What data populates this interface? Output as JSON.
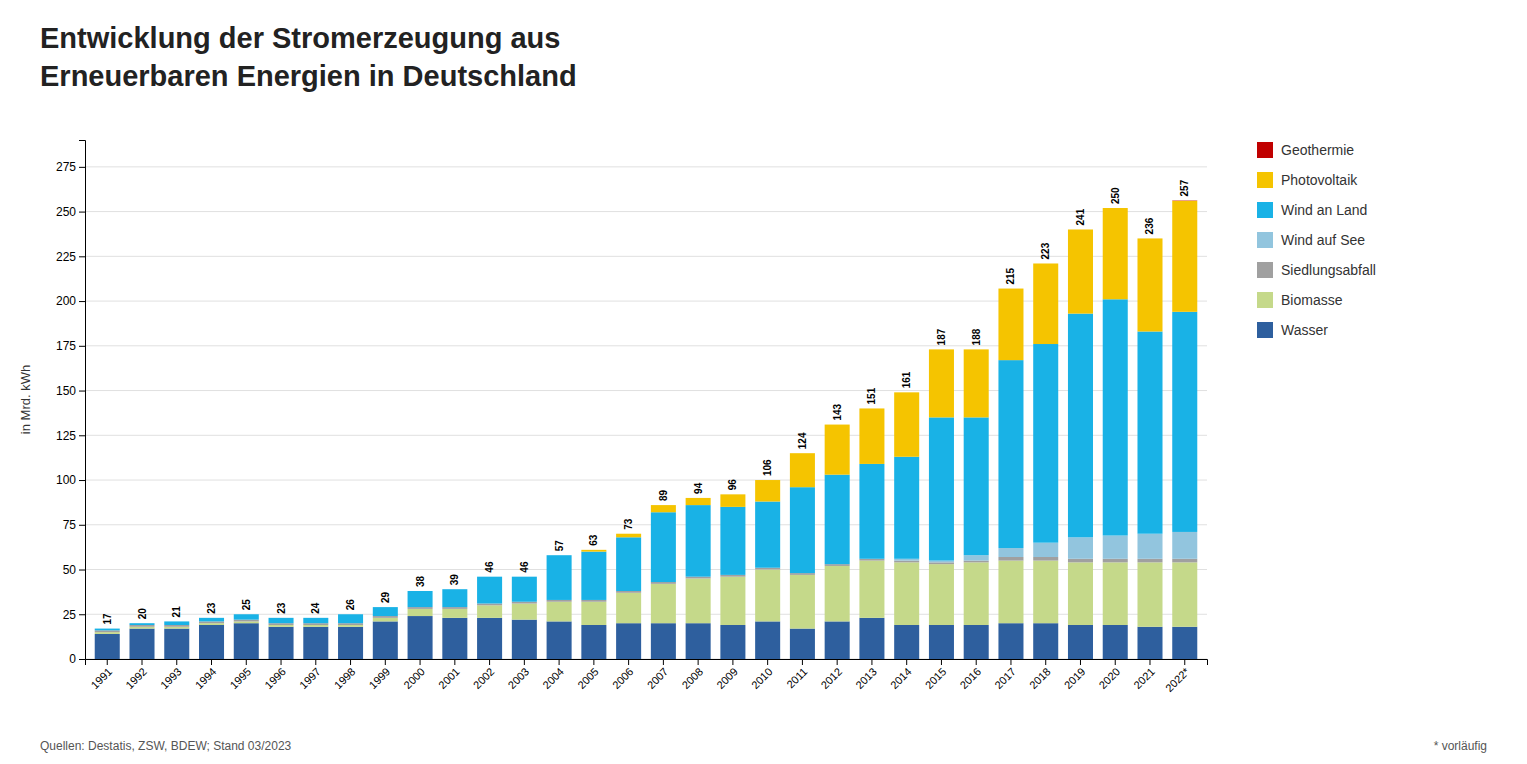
{
  "chart_data": {
    "type": "bar",
    "stacked": true,
    "title": "Entwicklung der Stromerzeugung aus",
    "subtitle": "Erneuerbaren Energien in Deutschland",
    "ylabel": "in Mrd. kWh",
    "categories": [
      "1991",
      "1992",
      "1993",
      "1994",
      "1995",
      "1996",
      "1997",
      "1998",
      "1999",
      "2000",
      "2001",
      "2002",
      "2003",
      "2004",
      "2005",
      "2006",
      "2007",
      "2008",
      "2009",
      "2010",
      "2011",
      "2012",
      "2013",
      "2014",
      "2015",
      "2016",
      "2017",
      "2018",
      "2019",
      "2020",
      "2021",
      "2022*"
    ],
    "series": [
      {
        "name": "Wasser",
        "color": "#2E5F9E",
        "values": [
          14,
          17,
          17,
          19,
          20,
          18,
          18,
          18,
          21,
          24,
          23,
          23,
          22,
          21,
          19,
          20,
          20,
          20,
          19,
          21,
          17,
          21,
          23,
          19,
          19,
          19,
          20,
          20,
          19,
          19,
          18,
          18
        ]
      },
      {
        "name": "Biomasse",
        "color": "#C5D98A",
        "values": [
          1,
          1,
          1,
          1,
          1,
          1,
          1,
          1,
          2,
          4,
          5,
          7,
          9,
          11,
          13,
          17,
          22,
          25,
          27,
          29,
          30,
          31,
          32,
          35,
          34,
          35,
          35,
          35,
          35,
          35,
          36,
          36
        ]
      },
      {
        "name": "Siedlungsabfall",
        "color": "#A0A0A0",
        "values": [
          1,
          1,
          1,
          1,
          1,
          1,
          1,
          1,
          1,
          1,
          1,
          1,
          1,
          1,
          1,
          1,
          1,
          1,
          1,
          1,
          1,
          1,
          1,
          1,
          1,
          1,
          2,
          2,
          2,
          2,
          2,
          2
        ]
      },
      {
        "name": "Wind auf See",
        "color": "#92C5DE",
        "values": [
          0,
          0,
          0,
          0,
          0,
          0,
          0,
          0,
          0,
          0,
          0,
          0,
          0,
          0,
          0,
          0,
          0,
          0,
          0,
          0,
          0,
          0,
          0,
          1,
          1,
          3,
          5,
          8,
          12,
          13,
          14,
          15
        ]
      },
      {
        "name": "Wind an Land",
        "color": "#19B2E6",
        "values": [
          1,
          1,
          2,
          2,
          3,
          3,
          3,
          5,
          5,
          9,
          10,
          15,
          14,
          25,
          27,
          30,
          39,
          40,
          38,
          37,
          48,
          50,
          53,
          57,
          80,
          77,
          105,
          111,
          125,
          132,
          113,
          123
        ]
      },
      {
        "name": "Photovoltaik",
        "color": "#F5C400",
        "values": [
          0,
          0,
          0,
          0,
          0,
          0,
          0,
          0,
          0,
          0,
          0,
          0,
          0,
          0,
          1,
          2,
          4,
          4,
          7,
          12,
          19,
          28,
          31,
          36,
          38,
          38,
          40,
          45,
          47,
          51,
          52,
          62
        ]
      },
      {
        "name": "Geothermie",
        "color": "#C00000",
        "values": [
          0,
          0,
          0,
          0,
          0,
          0,
          0,
          0,
          0,
          0,
          0,
          0,
          0,
          0,
          0,
          0,
          0,
          0,
          0,
          0,
          0,
          0,
          0,
          0,
          0,
          0,
          0,
          0,
          0,
          0,
          0,
          0.2
        ]
      }
    ],
    "totals": [
      17,
      20,
      21,
      23,
      25,
      23,
      24,
      26,
      29,
      38,
      39,
      46,
      46,
      57,
      63,
      73,
      89,
      94,
      96,
      106,
      124,
      143,
      151,
      161,
      187,
      188,
      215,
      223,
      241,
      250,
      236,
      257
    ],
    "ylim": [
      0,
      290
    ],
    "yticks": [
      0,
      25,
      50,
      75,
      100,
      125,
      150,
      175,
      200,
      225,
      250,
      275
    ],
    "grid": true,
    "legend": "right",
    "annotations": [
      "Quellen: Destatis, ZSW, BDEW; Stand 03/2023",
      "* vorläufig"
    ]
  }
}
